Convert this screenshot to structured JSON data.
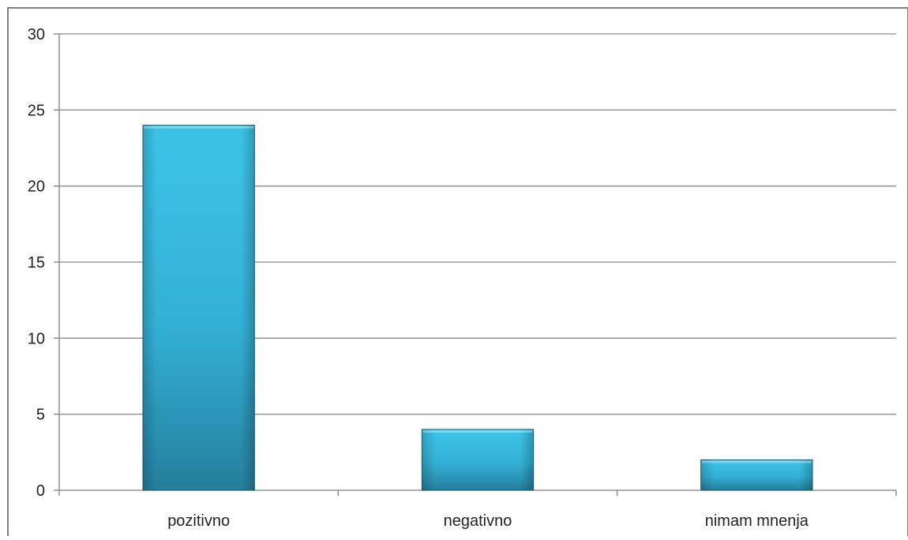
{
  "chart_data": {
    "type": "bar",
    "title": "",
    "xlabel": "",
    "ylabel": "",
    "categories": [
      "pozitivno",
      "negativno",
      "nimam mnenja"
    ],
    "values": [
      24,
      4,
      2
    ],
    "ylim": [
      0,
      30
    ],
    "yticks": [
      0,
      5,
      10,
      15,
      20,
      25,
      30
    ],
    "grid": true,
    "legend": "none",
    "colors": {
      "bar_fill": "#2eb6dc",
      "bar_stroke": "#1f5d78",
      "grid": "#8c8c8c",
      "axis": "#7f7f7f",
      "frame": "#808080"
    }
  }
}
